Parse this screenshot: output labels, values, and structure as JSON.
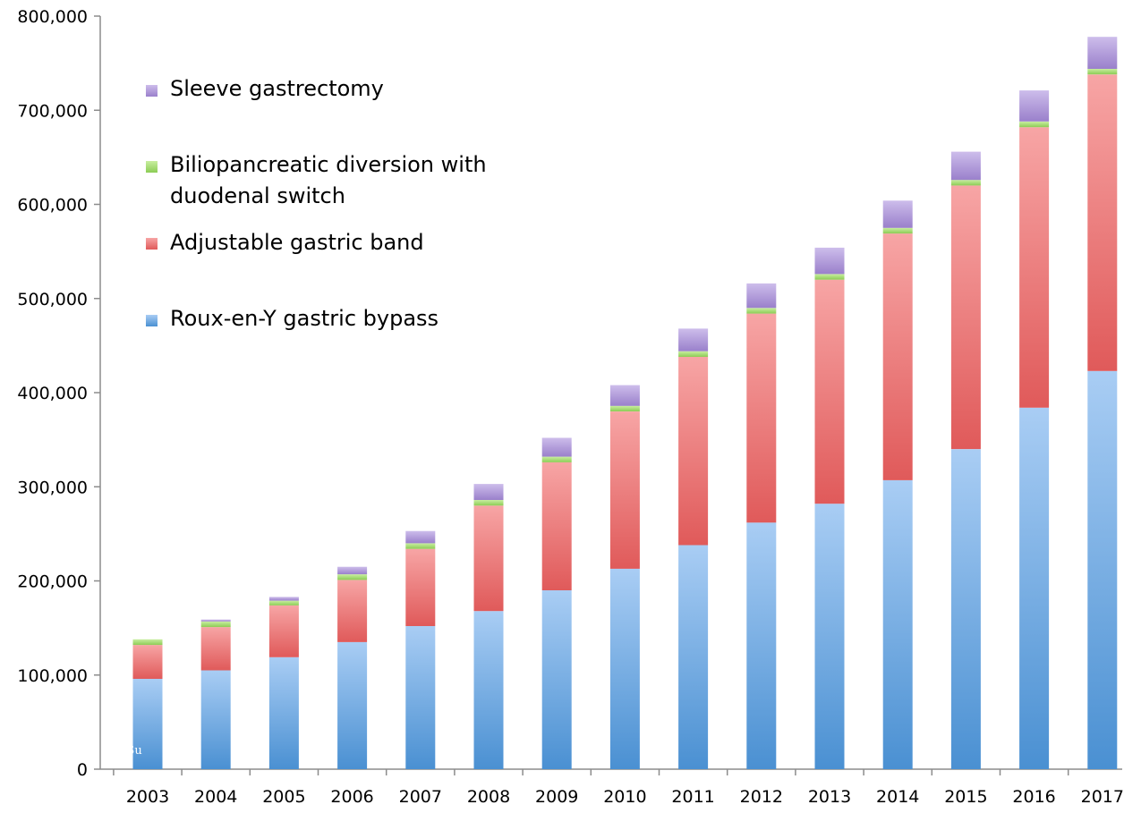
{
  "chart_data": {
    "type": "bar",
    "stacked": true,
    "categories": [
      "2003",
      "2004",
      "2005",
      "2006",
      "2007",
      "2008",
      "2009",
      "2010",
      "2011",
      "2012",
      "2013",
      "2014",
      "2015",
      "2016",
      "2017"
    ],
    "series": [
      {
        "name": "Roux-en-Y gastric bypass",
        "color": "#5b9bd5",
        "values": [
          96000,
          105000,
          119000,
          135000,
          152000,
          168000,
          190000,
          213000,
          238000,
          262000,
          282000,
          307000,
          340000,
          384000,
          423000
        ]
      },
      {
        "name": "Adjustable gastric band",
        "color": "#e46868",
        "values": [
          36000,
          46000,
          55000,
          66000,
          82000,
          112000,
          136000,
          167000,
          200000,
          222000,
          238000,
          262000,
          280000,
          298000,
          315000
        ]
      },
      {
        "name": "Biliopancreatic diversion with duodenal switch",
        "color": "#9bd16a",
        "values": [
          6000,
          6000,
          5000,
          6000,
          6000,
          6000,
          6000,
          6000,
          6000,
          6000,
          6000,
          6000,
          6000,
          6000,
          6000
        ]
      },
      {
        "name": "Sleeve gastrectomy",
        "color": "#a58ed2",
        "values": [
          0,
          2000,
          4000,
          8000,
          13000,
          17000,
          20000,
          22000,
          24000,
          26000,
          28000,
          29000,
          30000,
          33000,
          34000
        ]
      }
    ],
    "legend_order": [
      3,
      2,
      1,
      0
    ],
    "ylim": [
      0,
      800000
    ],
    "yticks": [
      0,
      100000,
      200000,
      300000,
      400000,
      500000,
      600000,
      700000,
      800000
    ],
    "ytick_labels": [
      "0",
      "100,000",
      "200,000",
      "300,000",
      "400,000",
      "500,000",
      "600,000",
      "700,000",
      "800,000"
    ],
    "legend_placement": "top-left",
    "grid": false,
    "title": "",
    "xlabel": "",
    "ylabel": ""
  },
  "overlay_text": "c Su"
}
